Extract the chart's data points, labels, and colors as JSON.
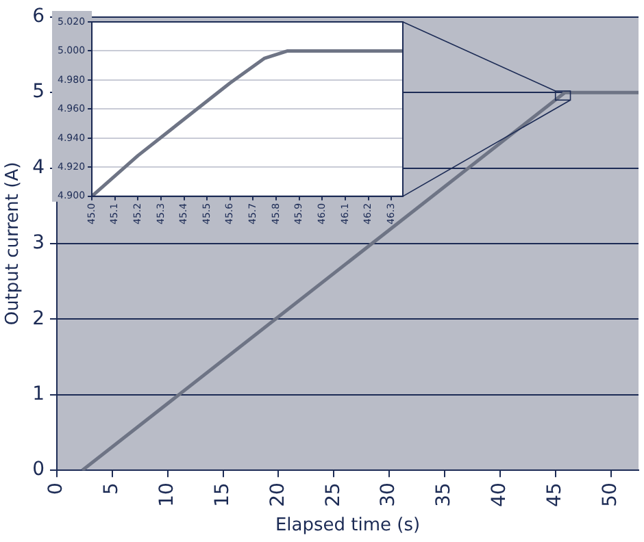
{
  "chart_data": [
    {
      "type": "line",
      "xlabel": "Elapsed time (s)",
      "ylabel": "Output current (A)",
      "x": [
        2.3,
        45.85,
        52.5
      ],
      "values": [
        0,
        5,
        5
      ],
      "color": "#6e7485",
      "xlim": [
        0,
        52.5
      ],
      "xticks": [
        0,
        5,
        10,
        15,
        20,
        25,
        30,
        35,
        40,
        45,
        50
      ],
      "ylim": [
        0,
        6
      ],
      "yticks": [
        0,
        1,
        2,
        3,
        4,
        5,
        6
      ],
      "grid": "y"
    },
    {
      "type": "line",
      "x": [
        45.0,
        45.2,
        45.4,
        45.6,
        45.75,
        45.85,
        46.3,
        46.35
      ],
      "values": [
        4.9,
        4.928,
        4.953,
        4.978,
        4.995,
        5.0,
        5.0,
        5.0
      ],
      "color": "#6e7485",
      "xlim": [
        45,
        46.35
      ],
      "xticks": [
        {
          "value": 45,
          "label": "45.0"
        },
        {
          "value": 45.1,
          "label": "45.1"
        },
        {
          "value": 45.2,
          "label": "45.2"
        },
        {
          "value": 45.3,
          "label": "45.3"
        },
        {
          "value": 45.4,
          "label": "45.4"
        },
        {
          "value": 45.5,
          "label": "45.5"
        },
        {
          "value": 45.6,
          "label": "45.6"
        },
        {
          "value": 45.7,
          "label": "45.7"
        },
        {
          "value": 45.8,
          "label": "45.8"
        },
        {
          "value": 45.9,
          "label": "45.9"
        },
        {
          "value": 46,
          "label": "46.0"
        },
        {
          "value": 46.1,
          "label": "46.1"
        },
        {
          "value": 46.2,
          "label": "46.2"
        },
        {
          "value": 46.3,
          "label": "46.3"
        }
      ],
      "ylim": [
        4.9,
        5.02
      ],
      "yticks": [
        {
          "value": 4.9,
          "label": "4.900"
        },
        {
          "value": 4.92,
          "label": "4.920"
        },
        {
          "value": 4.94,
          "label": "4.940"
        },
        {
          "value": 4.96,
          "label": "4.960"
        },
        {
          "value": 4.98,
          "label": "4.980"
        },
        {
          "value": 5.0,
          "label": "5.000"
        },
        {
          "value": 5.02,
          "label": "5.020"
        }
      ],
      "grid": "y"
    }
  ]
}
